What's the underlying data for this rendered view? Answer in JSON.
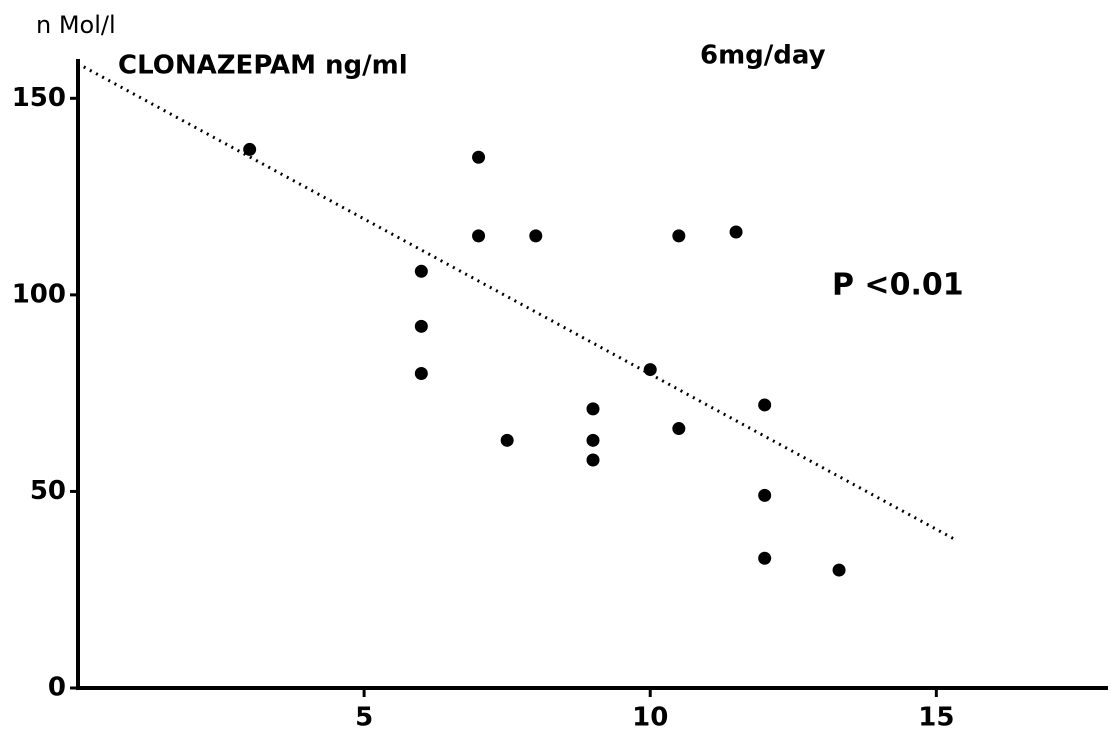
{
  "chart_data": {
    "type": "scatter",
    "title": "CLONAZEPAM ng/ml",
    "y_label": "n Mol/l",
    "annotations": [
      "6mg/day",
      "P <0.01"
    ],
    "x": [
      3.0,
      7.0,
      7.0,
      8.0,
      10.5,
      11.5,
      6.0,
      6.0,
      6.0,
      7.5,
      9.0,
      9.0,
      9.0,
      10.0,
      10.5,
      12.0,
      12.0,
      12.0,
      13.3
    ],
    "values": [
      137,
      135,
      115,
      115,
      115,
      116,
      106,
      92,
      80,
      63,
      71,
      63,
      58,
      81,
      66,
      72,
      49,
      33,
      30
    ],
    "color": "#000000",
    "trendline": {
      "x": [
        0.1,
        15.3
      ],
      "y": [
        158,
        38
      ]
    },
    "xlim": [
      0,
      18
    ],
    "ylim": [
      0,
      160
    ],
    "xticks": [
      5,
      10,
      15
    ],
    "yticks": [
      0,
      50,
      100,
      150
    ]
  }
}
